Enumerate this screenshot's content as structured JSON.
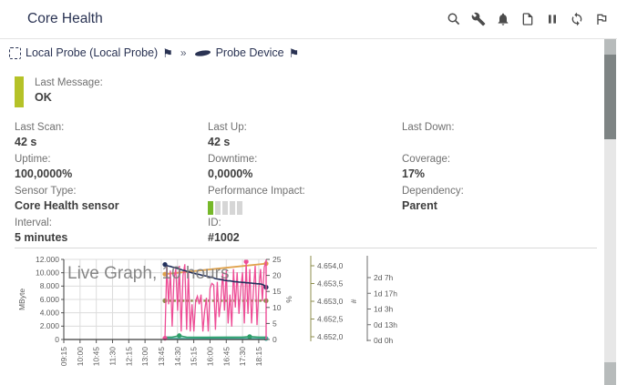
{
  "header": {
    "title": "Core Health",
    "icons": [
      "search",
      "tools",
      "notifications",
      "report",
      "pause",
      "refresh",
      "flag"
    ]
  },
  "breadcrumb": {
    "probe": "Local Probe (Local Probe)",
    "separator": "»",
    "device": "Probe Device",
    "flag_glyph": "⚑"
  },
  "status": {
    "label": "Last Message:",
    "value": "OK",
    "color": "#b5c228"
  },
  "stats": [
    {
      "label": "Last Scan:",
      "value": "42 s"
    },
    {
      "label": "Last Up:",
      "value": "42 s"
    },
    {
      "label": "Last Down:",
      "value": ""
    },
    {
      "label": "Uptime:",
      "value": "100,0000%"
    },
    {
      "label": "Downtime:",
      "value": "0,0000%"
    },
    {
      "label": "Coverage:",
      "value": "17%"
    },
    {
      "label": "Sensor Type:",
      "value": "Core Health sensor"
    },
    {
      "label": "Performance Impact:",
      "value": ""
    },
    {
      "label": "Dependency:",
      "value": "Parent"
    },
    {
      "label": "Interval:",
      "value": "5 minutes"
    },
    {
      "label": "ID:",
      "value": "#1002"
    }
  ],
  "performance_impact": {
    "bars_total": 5,
    "bars_active": 1,
    "active_color": "#76b82a",
    "inactive_color": "#d6d6d6"
  },
  "chart_data": {
    "type": "line",
    "title": "Live Graph, 10 hours",
    "x_domain": [
      9.25,
      18.59
    ],
    "y_domain": [
      0,
      25
    ],
    "x_ticks": [
      {
        "hour": 9.25,
        "label": "09:15"
      },
      {
        "hour": 10.0,
        "label": "10:00"
      },
      {
        "hour": 10.75,
        "label": "10:45"
      },
      {
        "hour": 11.5,
        "label": "11:30"
      },
      {
        "hour": 12.25,
        "label": "12:15"
      },
      {
        "hour": 13.0,
        "label": "13:00"
      },
      {
        "hour": 13.75,
        "label": "13:45"
      },
      {
        "hour": 14.5,
        "label": "14:30"
      },
      {
        "hour": 15.25,
        "label": "15:15"
      },
      {
        "hour": 16.0,
        "label": "16:00"
      },
      {
        "hour": 16.75,
        "label": "16:45"
      },
      {
        "hour": 17.5,
        "label": "17:30"
      },
      {
        "hour": 18.25,
        "label": "18:15"
      }
    ],
    "axes": {
      "left": {
        "label": "MByte",
        "ticks": [
          "0",
          "2.000",
          "4.000",
          "6.000",
          "8.000",
          "10.000",
          "12.000"
        ]
      },
      "percent": {
        "label": "%",
        "ticks": [
          "0",
          "5",
          "10",
          "15",
          "20",
          "25"
        ],
        "line_color": "#ee4d96"
      },
      "hash": {
        "label": "#",
        "color": "#8d8d4e",
        "ticks_top_down": [
          "4.654,0",
          "4.653,5",
          "4.653,0",
          "4.652,5",
          "4.652,0"
        ]
      },
      "uptime": {
        "color": "#6e6e6e",
        "ticks_top_down": [
          "2d 7h",
          "1d 17h",
          "1d 3h",
          "0d 13h",
          "0d 0h"
        ]
      }
    },
    "band": {
      "color": "rgba(77,182,172,0.25)",
      "x0": 13.92,
      "x1": 18.59,
      "y0": 0.08,
      "y1": 1.05
    },
    "series": [
      {
        "name": "handles",
        "color": "#8d8d4e",
        "width": 2.4,
        "dash": "2.5,2.2",
        "points": [
          [
            13.92,
            12.1
          ],
          [
            18.59,
            12.1
          ]
        ],
        "markers": [
          [
            13.92,
            12.1
          ],
          [
            18.59,
            12.1
          ]
        ]
      },
      {
        "name": "age-of-code",
        "color": "#e0a24b",
        "width": 1.8,
        "points": [
          [
            13.92,
            20.4
          ],
          [
            18.59,
            23.7
          ]
        ],
        "markers": [
          [
            13.92,
            20.4
          ],
          [
            18.59,
            23.7
          ]
        ]
      },
      {
        "name": "committed-memory-band-line",
        "color": "#45b5a5",
        "width": 1.4,
        "points": [
          [
            13.92,
            0.3
          ],
          [
            18.59,
            0.3
          ]
        ],
        "markers": [
          [
            18.59,
            0.3
          ]
        ]
      },
      {
        "name": "free-memory",
        "color": "#2f9e69",
        "width": 1.6,
        "points": [
          [
            13.92,
            0.7
          ],
          [
            14.25,
            0.7
          ],
          [
            14.58,
            1.2
          ],
          [
            14.92,
            0.7
          ],
          [
            15.75,
            0.65
          ],
          [
            16.75,
            0.68
          ],
          [
            17.5,
            0.7
          ],
          [
            17.83,
            0.9
          ],
          [
            18.25,
            0.7
          ],
          [
            18.59,
            0.7
          ]
        ],
        "markers": [
          [
            14.58,
            1.2
          ],
          [
            17.83,
            0.9
          ]
        ]
      },
      {
        "name": "cpu-load",
        "color": "#ee4d96",
        "width": 1.3,
        "x_start": 13.92,
        "x_step": 0.0833,
        "values": [
          0.4,
          23,
          11,
          21.5,
          4,
          19,
          22,
          9,
          23,
          2.5,
          20,
          23.5,
          3,
          21,
          2.5,
          11,
          2.5,
          12,
          13.5,
          11,
          14,
          2.5,
          9,
          13,
          2.5,
          16,
          17.5,
          17,
          3,
          18,
          7,
          12.5,
          21,
          9,
          21.5,
          5,
          14,
          4,
          22,
          10,
          21,
          8,
          16,
          21,
          5,
          24.3,
          8,
          22,
          5,
          15,
          23,
          4.5,
          16,
          22,
          12,
          22.5,
          24.5
        ],
        "markers": [
          [
            13.92,
            0.4
          ],
          [
            17.67,
            24.3
          ]
        ]
      },
      {
        "name": "health",
        "color": "#22305c",
        "width": 1.6,
        "x_start": 13.92,
        "x_step": 0.0833,
        "values": [
          23.4,
          23.1,
          22.9,
          22.8,
          22.6,
          22.5,
          22.3,
          22.2,
          22.0,
          21.8,
          21.6,
          21.5,
          21.3,
          21.1,
          21.0,
          20.8,
          20.7,
          20.5,
          20.4,
          20.3,
          20.1,
          20.0,
          19.9,
          19.8,
          19.6,
          19.5,
          19.4,
          19.2,
          19.0,
          18.9,
          18.8,
          18.7,
          18.6,
          18.5,
          18.4,
          18.3,
          18.3,
          18.2,
          18.1,
          18.0,
          18.0,
          17.9,
          17.9,
          17.8,
          17.8,
          17.7,
          17.7,
          17.6,
          17.6,
          17.5,
          17.5,
          17.4,
          17.4,
          17.3,
          17.2,
          16.9,
          16.3
        ],
        "markers": [
          [
            13.92,
            23.4
          ],
          [
            18.59,
            16.3
          ]
        ]
      }
    ]
  }
}
